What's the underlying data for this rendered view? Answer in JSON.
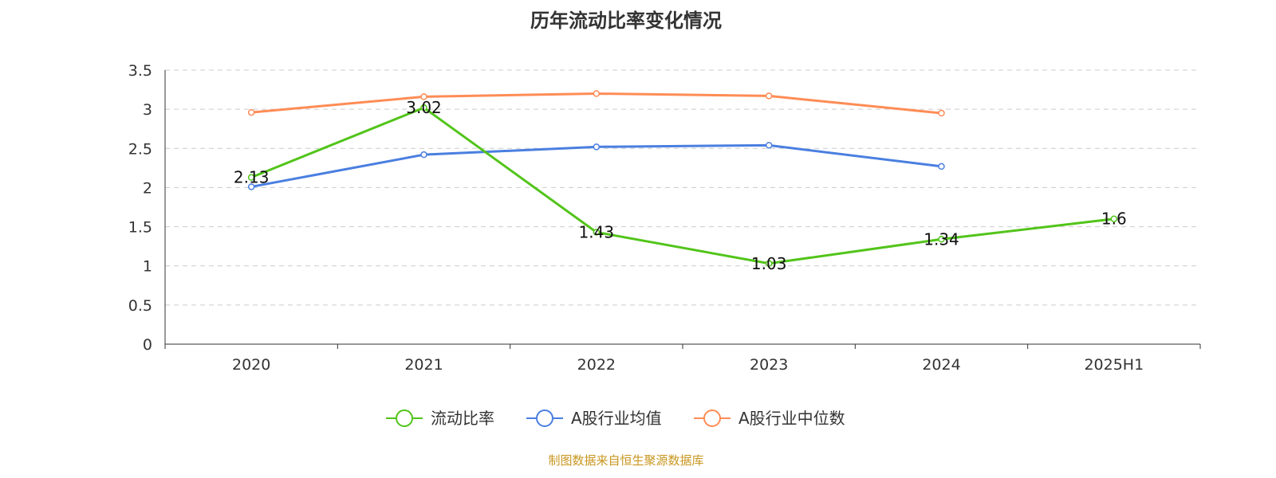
{
  "chart_data": {
    "type": "line",
    "title": "历年流动比率变化情况",
    "categories": [
      "2020",
      "2021",
      "2022",
      "2023",
      "2024",
      "2025H1"
    ],
    "ylim": [
      0,
      3.5
    ],
    "yticks": [
      "0",
      "0.5",
      "1",
      "1.5",
      "2",
      "2.5",
      "3",
      "3.5"
    ],
    "grid": true,
    "legend_position": "bottom",
    "series": [
      {
        "name": "流动比率",
        "color": "#52c41a",
        "values": [
          2.13,
          3.02,
          1.43,
          1.03,
          1.34,
          1.6
        ],
        "labels": [
          "2.13",
          "3.02",
          "1.43",
          "1.03",
          "1.34",
          "1.6"
        ]
      },
      {
        "name": "A股行业均值",
        "color": "#4a7fe0",
        "values": [
          2.01,
          2.42,
          2.52,
          2.54,
          2.27,
          null
        ]
      },
      {
        "name": "A股行业中位数",
        "color": "#ff8c55",
        "values": [
          2.96,
          3.16,
          3.2,
          3.17,
          2.95,
          null
        ]
      }
    ]
  },
  "footer": "制图数据来自恒生聚源数据库"
}
